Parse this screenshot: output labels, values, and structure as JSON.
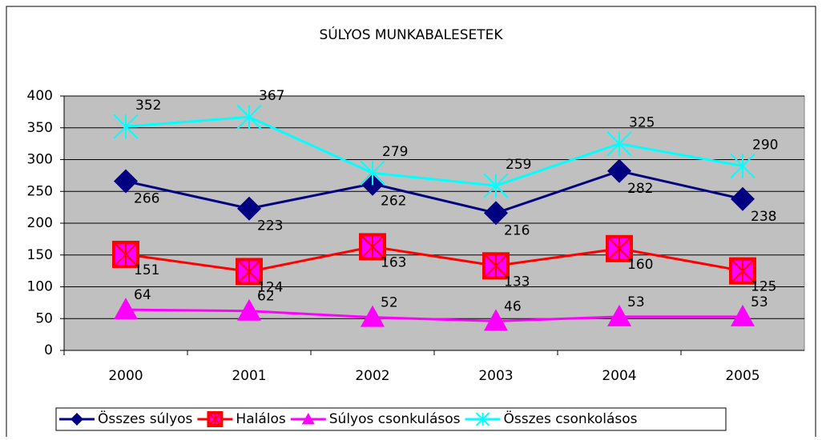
{
  "chart_data": {
    "type": "line",
    "title": "SÚLYOS MUNKABALESETEK",
    "categories": [
      "2000",
      "2001",
      "2002",
      "2003",
      "2004",
      "2005"
    ],
    "series": [
      {
        "name": "Összes súlyos",
        "color": "#000080",
        "marker": "diamond",
        "values": [
          266,
          223,
          262,
          216,
          282,
          238
        ]
      },
      {
        "name": "Halálos",
        "color": "#ff0000",
        "marker": "square-x",
        "values": [
          151,
          124,
          163,
          133,
          160,
          125
        ]
      },
      {
        "name": "Súlyos csonkulásos",
        "color": "#ff00ff",
        "marker": "triangle",
        "values": [
          64,
          62,
          52,
          46,
          53,
          53
        ]
      },
      {
        "name": "Összes csonkolásos",
        "color": "#00ffff",
        "marker": "x",
        "values": [
          352,
          367,
          279,
          259,
          325,
          290
        ]
      }
    ],
    "ylim": [
      0,
      400
    ],
    "yticks": [
      0,
      50,
      100,
      150,
      200,
      250,
      300,
      350,
      400
    ],
    "grid": true,
    "legend": "bottom"
  }
}
